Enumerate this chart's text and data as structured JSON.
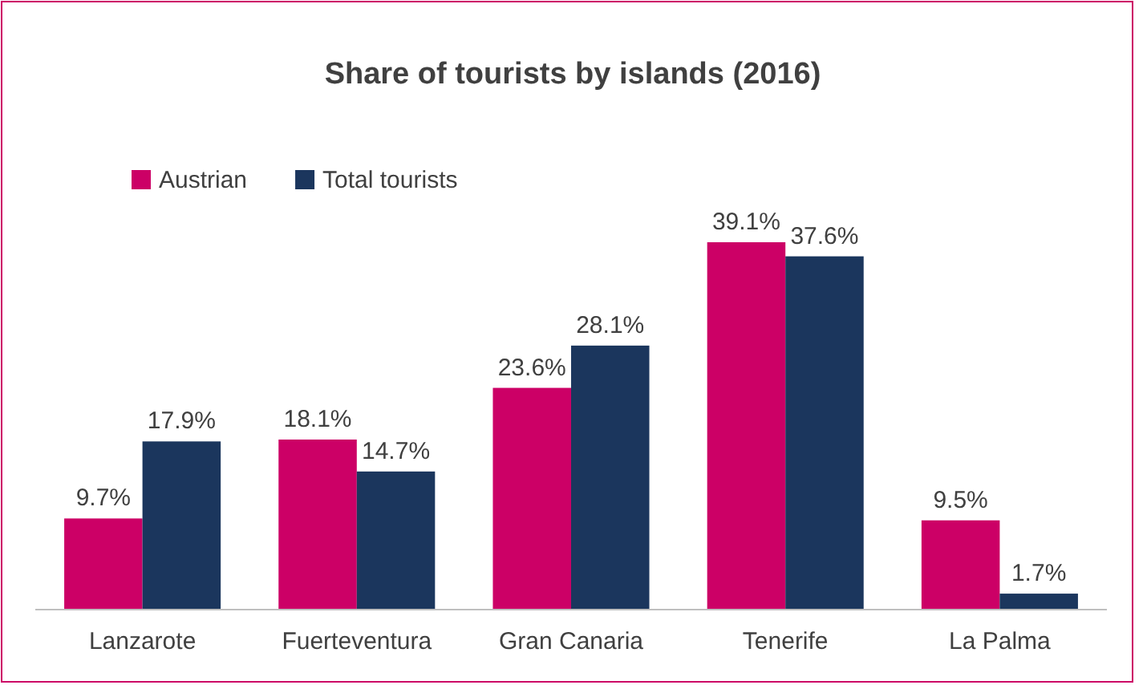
{
  "chart_data": {
    "type": "bar",
    "title": "Share of tourists by islands (2016)",
    "categories": [
      "Lanzarote",
      "Fuerteventura",
      "Gran Canaria",
      "Tenerife",
      "La Palma"
    ],
    "series": [
      {
        "name": "Austrian",
        "color": "#cc0066",
        "values": [
          9.7,
          18.1,
          23.6,
          39.1,
          9.5
        ],
        "value_labels": [
          "9.7%",
          "18.1%",
          "23.6%",
          "39.1%",
          "9.5%"
        ]
      },
      {
        "name": "Total tourists",
        "color": "#1b365d",
        "values": [
          17.9,
          14.7,
          28.1,
          37.6,
          1.7
        ],
        "value_labels": [
          "17.9%",
          "14.7%",
          "28.1%",
          "37.6%",
          "1.7%"
        ]
      }
    ],
    "legend": "top left",
    "grid": false
  }
}
